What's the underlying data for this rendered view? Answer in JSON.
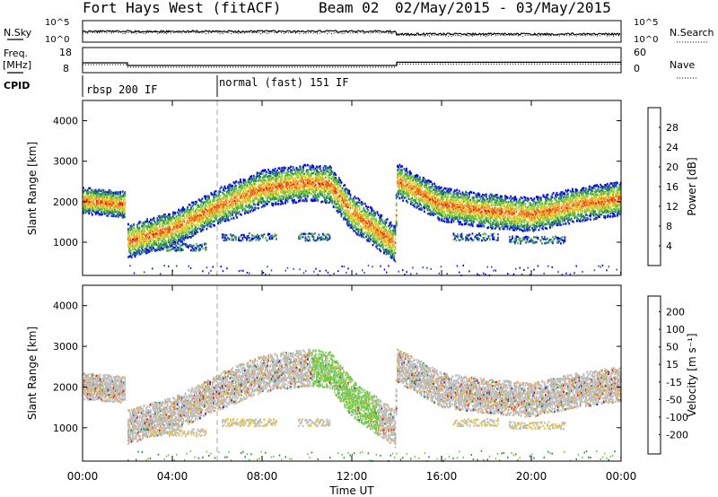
{
  "header": {
    "station": "Fort Hays West (fitACF)",
    "beam": "Beam 02",
    "dates": "02/May/2015 - 03/May/2015"
  },
  "colors": {
    "power": [
      "#0000ff",
      "#2a4fa8",
      "#2e8a5a",
      "#55b848",
      "#a8d23c",
      "#e8d632",
      "#f7a02a",
      "#ef5a1e",
      "#e81414"
    ],
    "velocity": [
      "#2a35b0",
      "#2e6aa6",
      "#2f8a40",
      "#6fce3c",
      "#bebebe",
      "#f2c81e",
      "#f49a1e",
      "#ee4a1a",
      "#e80c0c"
    ],
    "ground_scatter": "#bebebe"
  },
  "top_panel": {
    "nsky_label": "N.Sky",
    "nsearch_label": "N.Search",
    "nsky_ticks": [
      "10^5",
      "10^0"
    ],
    "freq_label": "Freq.",
    "freq_unit": "[MHz]",
    "freq_ticks": [
      "18",
      "8"
    ],
    "nave_label": "Nave",
    "nave_ticks": [
      "60",
      "0"
    ],
    "cpid_label": "CPID",
    "modes": [
      {
        "name": "rbsp 200 IF",
        "start_h": 0
      },
      {
        "name": "normal (fast) 151 IF",
        "start_h": 6
      }
    ],
    "freq_mhz_step": [
      {
        "h0": 0,
        "h1": 2,
        "v": 11.5
      },
      {
        "h0": 2,
        "h1": 14,
        "v": 10.0
      },
      {
        "h0": 14,
        "h1": 24,
        "v": 11.8
      }
    ]
  },
  "power_panel": {
    "ylabel": "Slant Range [km]",
    "yticks": [
      "4000",
      "3000",
      "2000",
      "1000"
    ],
    "colorbar_label": "Power [dB]",
    "colorbar_ticks": [
      "28",
      "24",
      "20",
      "16",
      "12",
      "8",
      "4"
    ]
  },
  "velocity_panel": {
    "ylabel": "Slant Range [km]",
    "yticks": [
      "4000",
      "3000",
      "2000",
      "1000"
    ],
    "colorbar_label": "Velocity [m s⁻¹]",
    "colorbar_ticks": [
      "200",
      "100",
      "50",
      "15",
      "-15",
      "-50",
      "-100",
      "-200"
    ]
  },
  "x_axis": {
    "xlabel": "Time UT",
    "ticks": [
      "00:00",
      "04:00",
      "08:00",
      "12:00",
      "16:00",
      "20:00",
      "00:00"
    ]
  },
  "chart_data": {
    "type": "heatmap",
    "x_unit": "hours UT",
    "xlim": [
      0,
      24
    ],
    "ylim_km": [
      180,
      4500
    ],
    "ionospheric_scatter_band": [
      {
        "h": 0.0,
        "range_km": 2050
      },
      {
        "h": 1.9,
        "range_km": 1950
      },
      {
        "h": 2.0,
        "range_km": 1050
      },
      {
        "h": 4.0,
        "range_km": 1350
      },
      {
        "h": 6.0,
        "range_km": 1900
      },
      {
        "h": 8.0,
        "range_km": 2350
      },
      {
        "h": 10.0,
        "range_km": 2500
      },
      {
        "h": 11.0,
        "range_km": 2450
      },
      {
        "h": 12.0,
        "range_km": 1750
      },
      {
        "h": 13.9,
        "range_km": 1000
      },
      {
        "h": 14.0,
        "range_km": 2550
      },
      {
        "h": 16.0,
        "range_km": 1950
      },
      {
        "h": 18.0,
        "range_km": 1800
      },
      {
        "h": 20.0,
        "range_km": 1700
      },
      {
        "h": 22.0,
        "range_km": 1950
      },
      {
        "h": 24.0,
        "range_km": 2100
      }
    ],
    "power_db_peak": 20,
    "velocity_typical_ms": 0
  }
}
